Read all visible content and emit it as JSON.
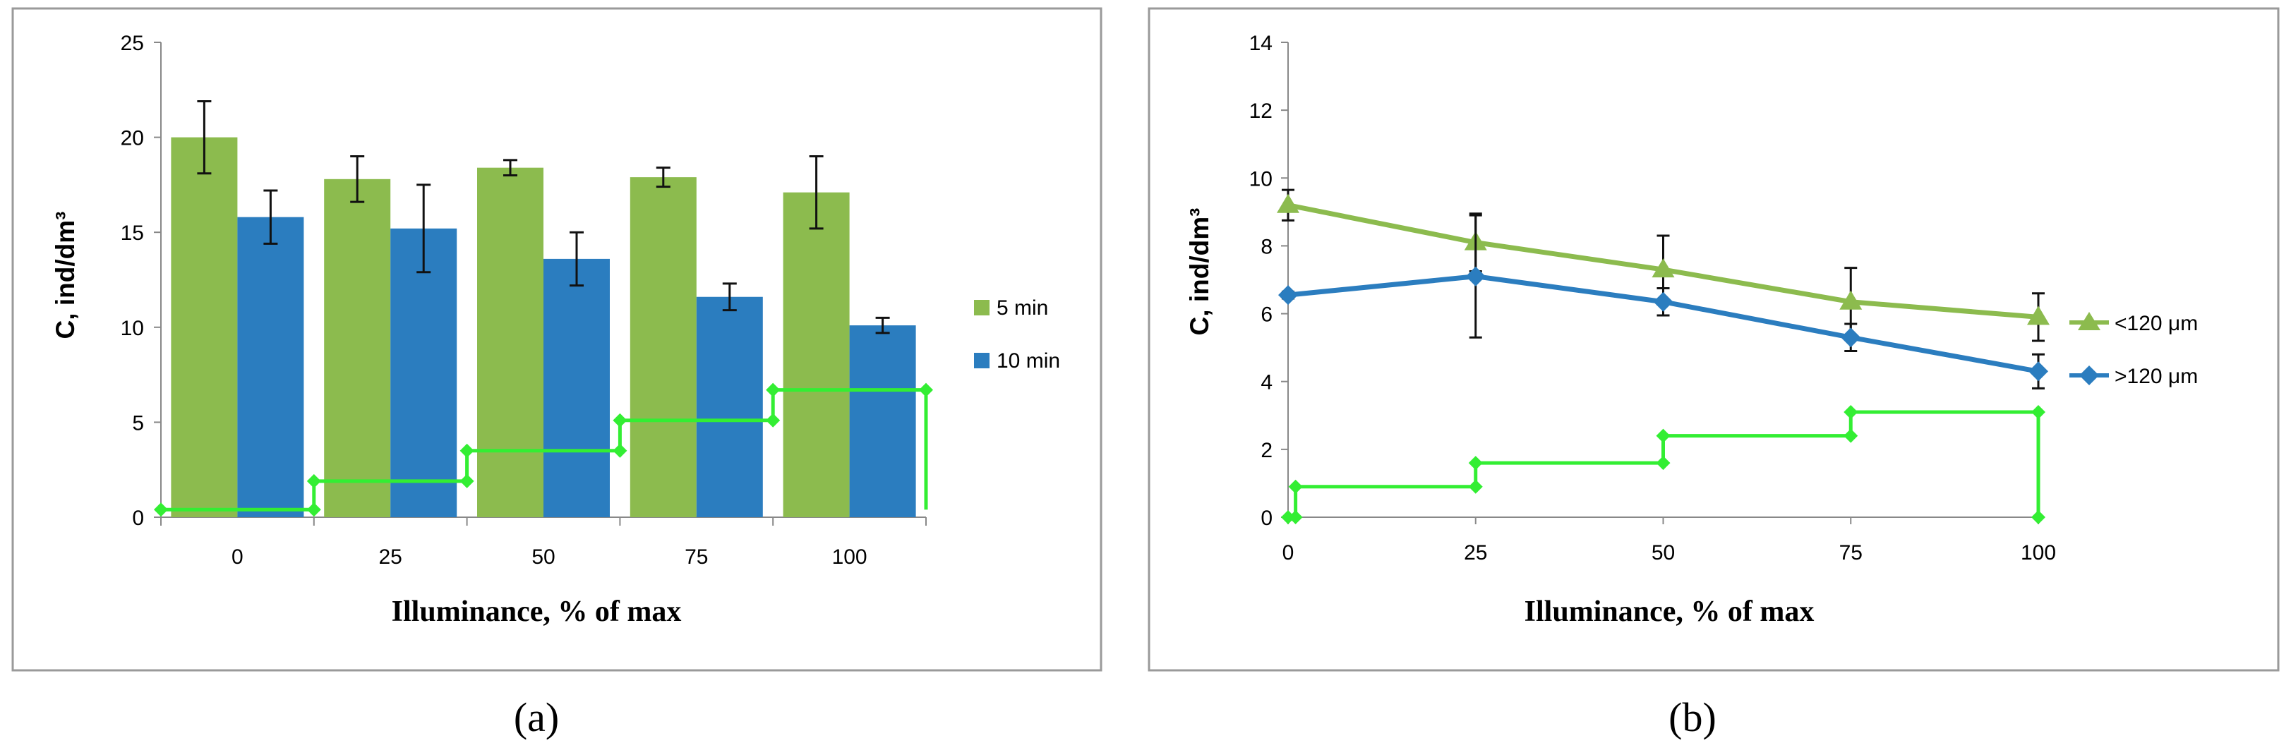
{
  "chart_data": [
    {
      "panel": "a",
      "caption": "(a)",
      "type": "bar",
      "xlabel": "Illuminance,  % of max",
      "ylabel": "C, ind/dm³",
      "ylim": [
        0,
        25
      ],
      "yticks": [
        0,
        5,
        10,
        15,
        20,
        25
      ],
      "categories": [
        "0",
        "25",
        "50",
        "75",
        "100"
      ],
      "series": [
        {
          "name": "5 min",
          "color": "#8cbb4e",
          "values": [
            20.0,
            17.8,
            18.4,
            17.9,
            17.1
          ],
          "errors": [
            1.9,
            1.2,
            0.4,
            0.5,
            1.9
          ]
        },
        {
          "name": "10 min",
          "color": "#2b7dbf",
          "values": [
            15.8,
            15.2,
            13.6,
            11.6,
            10.1
          ],
          "errors": [
            1.4,
            2.3,
            1.4,
            0.7,
            0.4
          ]
        }
      ],
      "light_profile": {
        "color": "#33ee33",
        "points": [
          [
            -0.5,
            0.4
          ],
          [
            0.5,
            0.4
          ],
          [
            0.5,
            1.9
          ],
          [
            1.5,
            1.9
          ],
          [
            1.5,
            3.5
          ],
          [
            2.5,
            3.5
          ],
          [
            2.5,
            5.1
          ],
          [
            3.5,
            5.1
          ],
          [
            3.5,
            6.7
          ],
          [
            4.5,
            6.7
          ],
          [
            4.5,
            0.4
          ]
        ]
      },
      "legend_position": "right"
    },
    {
      "panel": "b",
      "caption": "(b)",
      "type": "line",
      "xlabel": "Illuminance,  % of max",
      "ylabel": "C, ind/dm³",
      "xlim": [
        0,
        100
      ],
      "ylim": [
        0,
        14
      ],
      "xticks": [
        0,
        25,
        50,
        75,
        100
      ],
      "yticks": [
        0,
        2,
        4,
        6,
        8,
        10,
        12,
        14
      ],
      "x": [
        0,
        25,
        50,
        75,
        100
      ],
      "series": [
        {
          "name": "<120  μm",
          "color": "#8cbb4e",
          "marker": "triangle",
          "values": [
            9.2,
            8.1,
            7.3,
            6.35,
            5.9
          ],
          "errors": [
            0.45,
            0.85,
            1.0,
            1.0,
            0.7
          ]
        },
        {
          "name": ">120  μm",
          "color": "#2b7dbf",
          "marker": "diamond",
          "values": [
            6.55,
            7.1,
            6.35,
            5.3,
            4.3
          ],
          "errors": [
            0.1,
            1.8,
            0.4,
            0.4,
            0.5
          ]
        }
      ],
      "light_profile": {
        "color": "#33ee33",
        "points": [
          [
            0,
            0
          ],
          [
            1,
            0
          ],
          [
            1,
            0.9
          ],
          [
            25,
            0.9
          ],
          [
            25,
            1.6
          ],
          [
            50,
            1.6
          ],
          [
            50,
            2.4
          ],
          [
            75,
            2.4
          ],
          [
            75,
            3.1
          ],
          [
            100,
            3.1
          ],
          [
            100,
            0
          ]
        ]
      },
      "legend_position": "right"
    }
  ]
}
